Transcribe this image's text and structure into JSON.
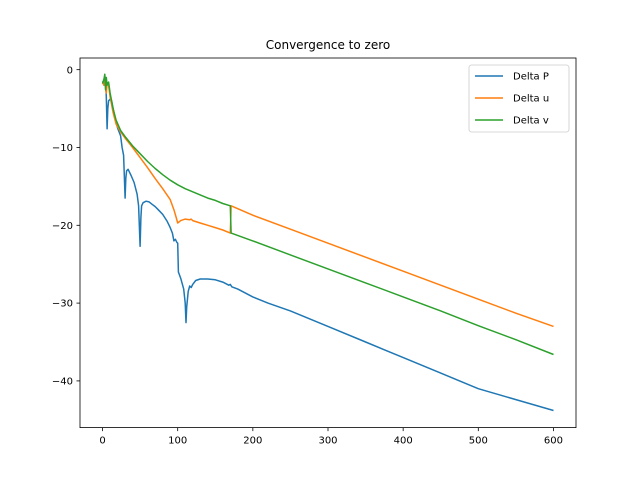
{
  "chart_data": {
    "type": "line",
    "title": "Convergence to zero",
    "xlabel": "",
    "ylabel": "",
    "xlim": [
      -30,
      630
    ],
    "ylim": [
      -46,
      1.5
    ],
    "xticks": [
      0,
      100,
      200,
      300,
      400,
      500,
      600
    ],
    "yticks": [
      0,
      -10,
      -20,
      -30,
      -40
    ],
    "ytick_labels": [
      "0",
      "−10",
      "−20",
      "−30",
      "−40"
    ],
    "grid": false,
    "legend_position": "top-right",
    "series": [
      {
        "name": "Delta P",
        "color": "#1f77b4",
        "points": [
          [
            0,
            -1.5
          ],
          [
            2,
            -2.0
          ],
          [
            4,
            -1.0
          ],
          [
            5,
            -3.5
          ],
          [
            6,
            -7.6
          ],
          [
            7,
            -5.0
          ],
          [
            8,
            -4.0
          ],
          [
            10,
            -3.8
          ],
          [
            12,
            -4.0
          ],
          [
            14,
            -5.0
          ],
          [
            16,
            -6.0
          ],
          [
            20,
            -7.5
          ],
          [
            24,
            -8.5
          ],
          [
            26,
            -10.0
          ],
          [
            28,
            -11.0
          ],
          [
            30,
            -16.5
          ],
          [
            31,
            -14.0
          ],
          [
            32,
            -13.0
          ],
          [
            34,
            -12.8
          ],
          [
            36,
            -13.2
          ],
          [
            38,
            -13.6
          ],
          [
            42,
            -14.5
          ],
          [
            46,
            -16.0
          ],
          [
            48,
            -17.5
          ],
          [
            50,
            -22.7
          ],
          [
            51,
            -19.0
          ],
          [
            52,
            -17.5
          ],
          [
            54,
            -17.1
          ],
          [
            58,
            -16.9
          ],
          [
            62,
            -17.0
          ],
          [
            66,
            -17.3
          ],
          [
            70,
            -17.6
          ],
          [
            74,
            -18.0
          ],
          [
            80,
            -18.6
          ],
          [
            86,
            -19.5
          ],
          [
            90,
            -20.3
          ],
          [
            93,
            -21.0
          ],
          [
            95,
            -22.0
          ],
          [
            97,
            -21.8
          ],
          [
            99,
            -22.2
          ],
          [
            100,
            -22.3
          ],
          [
            101,
            -26.0
          ],
          [
            104,
            -26.8
          ],
          [
            108,
            -28.2
          ],
          [
            110,
            -30.0
          ],
          [
            111,
            -32.5
          ],
          [
            112,
            -30.5
          ],
          [
            114,
            -28.5
          ],
          [
            116,
            -27.8
          ],
          [
            118,
            -28.0
          ],
          [
            120,
            -27.6
          ],
          [
            124,
            -27.1
          ],
          [
            130,
            -26.9
          ],
          [
            140,
            -26.9
          ],
          [
            150,
            -27.0
          ],
          [
            160,
            -27.3
          ],
          [
            168,
            -27.7
          ],
          [
            170,
            -27.6
          ],
          [
            172,
            -27.9
          ],
          [
            180,
            -28.2
          ],
          [
            200,
            -29.2
          ],
          [
            220,
            -30.0
          ],
          [
            250,
            -31.0
          ],
          [
            300,
            -33.0
          ],
          [
            350,
            -35.0
          ],
          [
            400,
            -37.0
          ],
          [
            450,
            -39.0
          ],
          [
            500,
            -41.0
          ],
          [
            550,
            -42.4
          ],
          [
            600,
            -43.8
          ]
        ]
      },
      {
        "name": "Delta u",
        "color": "#ff7f0e",
        "points": [
          [
            0,
            -1.6
          ],
          [
            2,
            -2.0
          ],
          [
            3,
            -1.2
          ],
          [
            4,
            -2.5
          ],
          [
            5,
            -3.0
          ],
          [
            6,
            -1.8
          ],
          [
            8,
            -2.0
          ],
          [
            10,
            -3.5
          ],
          [
            14,
            -5.5
          ],
          [
            18,
            -7.0
          ],
          [
            24,
            -8.0
          ],
          [
            30,
            -8.8
          ],
          [
            40,
            -10.0
          ],
          [
            50,
            -11.3
          ],
          [
            60,
            -12.6
          ],
          [
            70,
            -14.0
          ],
          [
            80,
            -15.3
          ],
          [
            90,
            -16.7
          ],
          [
            95,
            -18.0
          ],
          [
            98,
            -19.0
          ],
          [
            100,
            -19.7
          ],
          [
            104,
            -19.4
          ],
          [
            110,
            -19.2
          ],
          [
            116,
            -19.3
          ],
          [
            118,
            -19.2
          ],
          [
            120,
            -19.4
          ],
          [
            130,
            -19.7
          ],
          [
            140,
            -20.0
          ],
          [
            150,
            -20.3
          ],
          [
            160,
            -20.6
          ],
          [
            170,
            -21.0
          ],
          [
            171,
            -17.5
          ],
          [
            200,
            -18.7
          ],
          [
            250,
            -20.5
          ],
          [
            300,
            -22.3
          ],
          [
            350,
            -24.1
          ],
          [
            400,
            -25.9
          ],
          [
            450,
            -27.7
          ],
          [
            500,
            -29.5
          ],
          [
            550,
            -31.3
          ],
          [
            600,
            -33.0
          ]
        ]
      },
      {
        "name": "Delta v",
        "color": "#2ca02c",
        "points": [
          [
            0,
            -1.8
          ],
          [
            2,
            -1.2
          ],
          [
            3,
            -0.6
          ],
          [
            4,
            -2.6
          ],
          [
            5,
            -1.0
          ],
          [
            6,
            -2.0
          ],
          [
            7,
            -1.7
          ],
          [
            8,
            -1.6
          ],
          [
            10,
            -3.0
          ],
          [
            14,
            -5.0
          ],
          [
            18,
            -6.5
          ],
          [
            24,
            -7.8
          ],
          [
            30,
            -8.6
          ],
          [
            40,
            -9.8
          ],
          [
            50,
            -10.8
          ],
          [
            60,
            -11.8
          ],
          [
            70,
            -12.7
          ],
          [
            80,
            -13.5
          ],
          [
            90,
            -14.2
          ],
          [
            100,
            -14.8
          ],
          [
            110,
            -15.3
          ],
          [
            120,
            -15.7
          ],
          [
            130,
            -16.1
          ],
          [
            140,
            -16.5
          ],
          [
            150,
            -16.8
          ],
          [
            160,
            -17.2
          ],
          [
            170,
            -17.5
          ],
          [
            171,
            -21.0
          ],
          [
            200,
            -22.0
          ],
          [
            250,
            -23.8
          ],
          [
            300,
            -25.6
          ],
          [
            350,
            -27.4
          ],
          [
            400,
            -29.2
          ],
          [
            450,
            -31.0
          ],
          [
            500,
            -32.9
          ],
          [
            550,
            -34.7
          ],
          [
            600,
            -36.6
          ]
        ]
      }
    ]
  }
}
